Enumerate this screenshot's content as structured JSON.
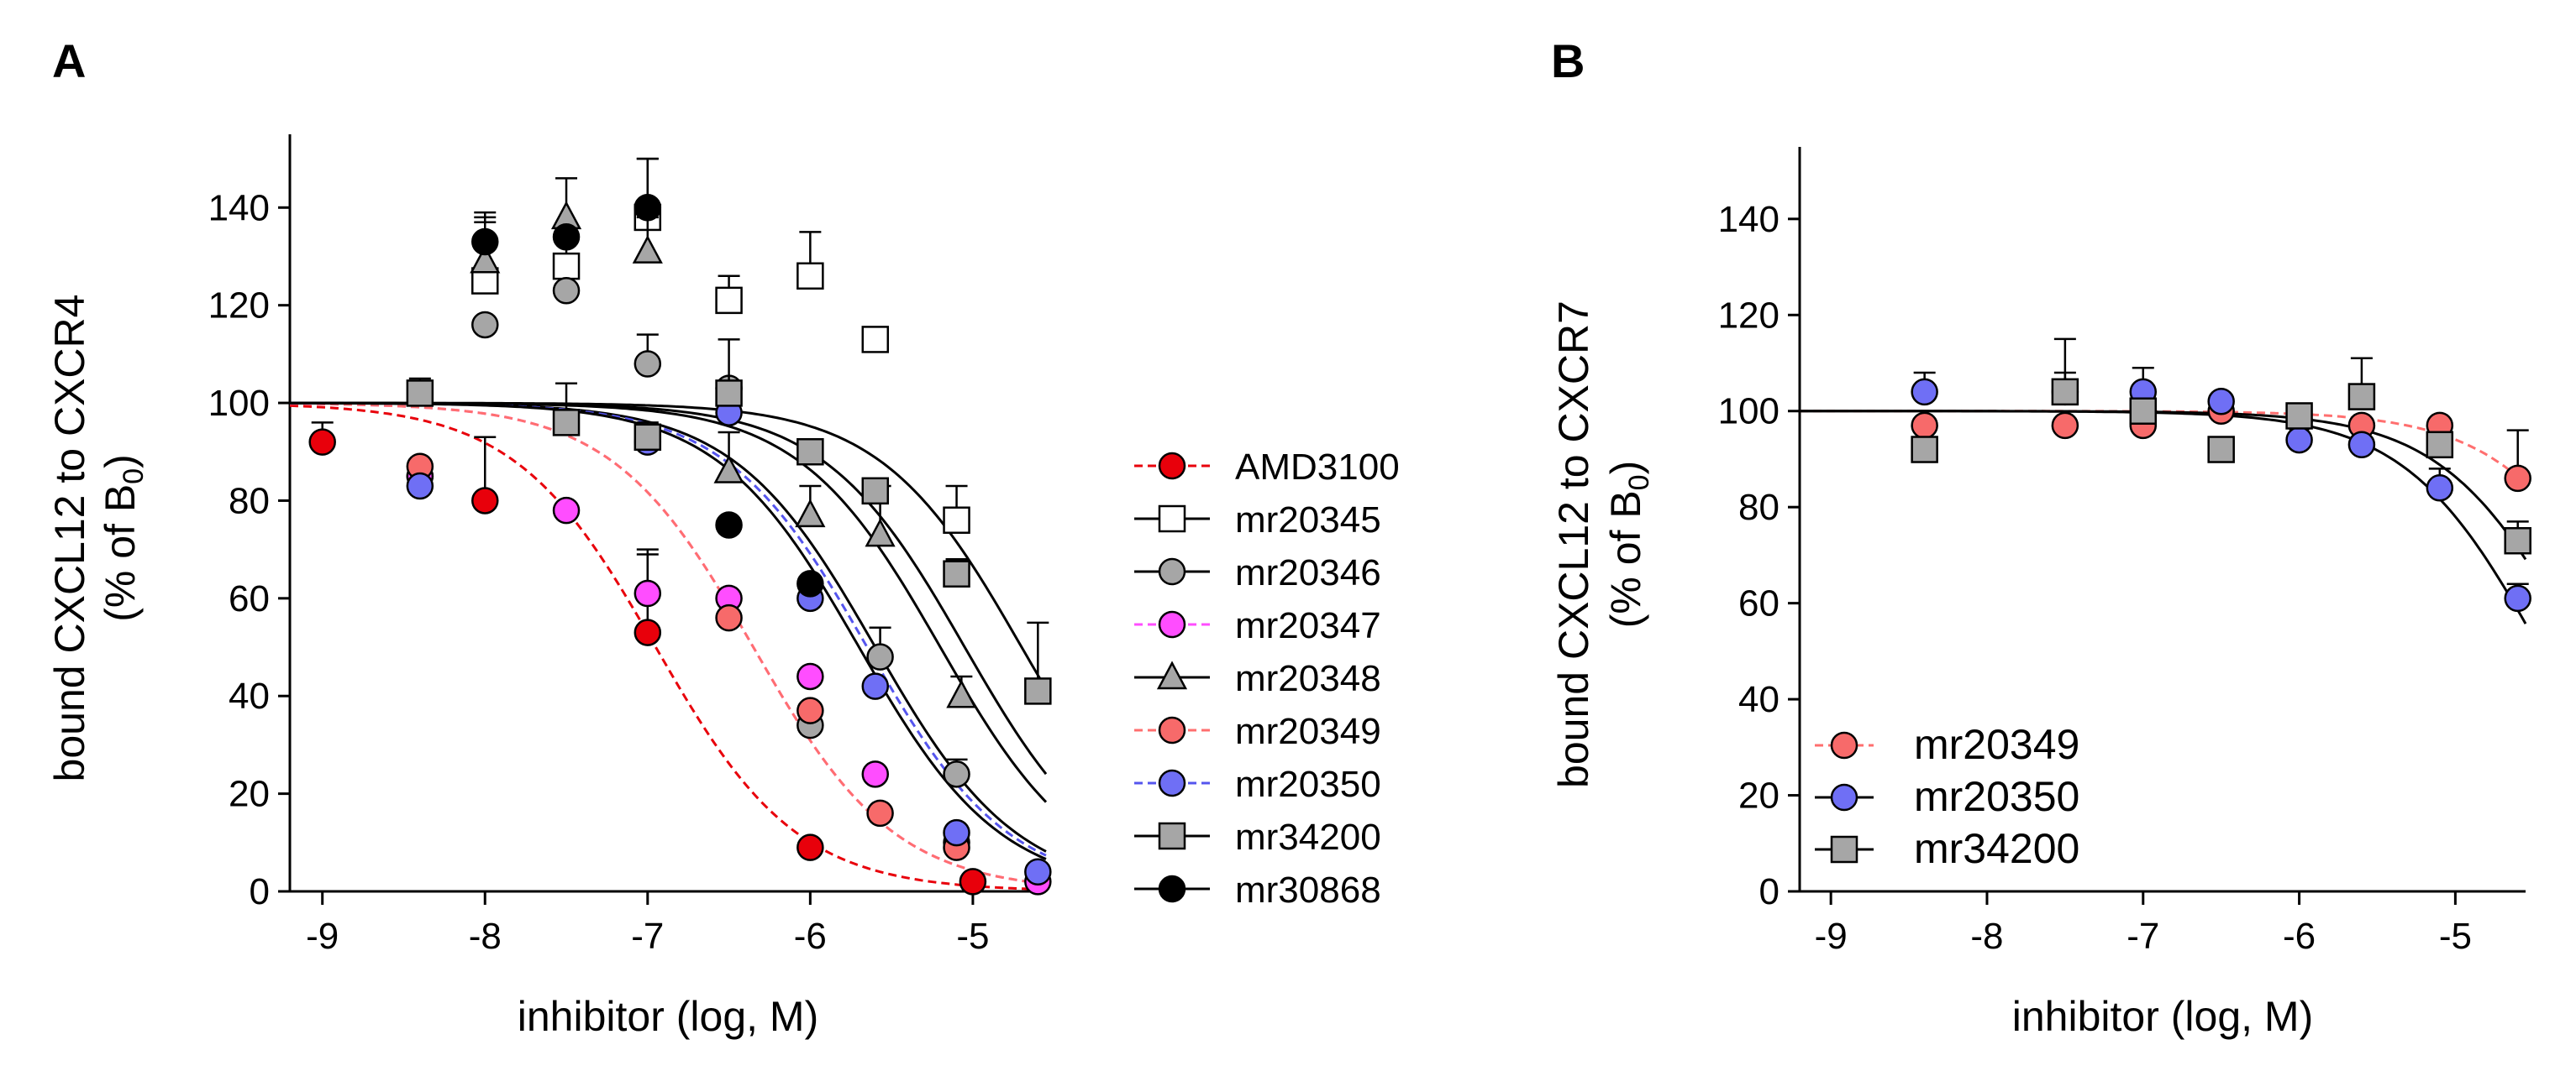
{
  "chart_data": [
    {
      "panel": "A",
      "type": "scatter",
      "xlabel": "inhibitor (log, M)",
      "ylabel_line1": "bound CXCL12 to CXCR4",
      "ylabel_line2_prefix": "(% of B",
      "ylabel_line2_sub": "0",
      "ylabel_line2_suffix": ")",
      "xlim": [
        -9.2,
        -4.55
      ],
      "ylim": [
        0,
        155
      ],
      "xticks": [
        -9,
        -8,
        -7,
        -6,
        -5
      ],
      "xtick_labels": [
        "-9",
        "-8",
        "-7",
        "-6",
        "-5"
      ],
      "yticks": [
        0,
        20,
        40,
        60,
        80,
        100,
        120,
        140
      ],
      "ytick_labels": [
        "0",
        "20",
        "40",
        "60",
        "80",
        "100",
        "120",
        "140"
      ],
      "legend_position": "right",
      "series": [
        {
          "name": "AMD3100",
          "color": "#e8000b",
          "marker": "circle",
          "fill": "#e8000b",
          "dashed": true,
          "ic50_log": -6.95,
          "x": [
            -9,
            -8.4,
            -8,
            -7,
            -6,
            -5
          ],
          "y": [
            92,
            85,
            80,
            53,
            9,
            2
          ],
          "err": [
            4,
            2,
            13,
            17,
            0,
            0
          ]
        },
        {
          "name": "mr20345",
          "color": "#000000",
          "marker": "square",
          "fill": "#ffffff",
          "dashed": false,
          "ic50_log": -4.7,
          "x": [
            -8,
            -7.5,
            -7,
            -6.5,
            -6,
            -5.6,
            -5.1
          ],
          "y": [
            125,
            128,
            138,
            121,
            126,
            113,
            76
          ],
          "err": [
            14,
            5,
            12,
            5,
            9,
            0,
            7
          ]
        },
        {
          "name": "mr20346",
          "color": "#000000",
          "marker": "circle",
          "fill": "#a6a6a6",
          "dashed": false,
          "ic50_log": -5.6,
          "x": [
            -8,
            -7.5,
            -7,
            -6.5,
            -6,
            -5.57,
            -5.1
          ],
          "y": [
            116,
            123,
            108,
            103,
            34,
            48,
            24
          ],
          "err": [
            0,
            0,
            6,
            0,
            4,
            6,
            3
          ]
        },
        {
          "name": "mr20347",
          "color": "#ff4dff",
          "marker": "circle",
          "fill": "#ff4dff",
          "dashed": true,
          "ic50_log": -6.35,
          "x": [
            -8.4,
            -7.5,
            -7,
            -6.5,
            -6,
            -5.6,
            -5.1,
            -4.6
          ],
          "y": [
            85,
            78,
            61,
            60,
            44,
            24,
            10,
            2
          ],
          "err": [
            0,
            0,
            8,
            0,
            0,
            0,
            0,
            0
          ]
        },
        {
          "name": "mr20348",
          "color": "#000000",
          "marker": "triangle",
          "fill": "#a6a6a6",
          "dashed": false,
          "ic50_log": -5.2,
          "x": [
            -8,
            -7.5,
            -7,
            -6.5,
            -6,
            -5.57,
            -5.07
          ],
          "y": [
            129,
            138,
            131,
            86,
            77,
            73,
            40
          ],
          "err": [
            8,
            8,
            7,
            8,
            6,
            10,
            4
          ]
        },
        {
          "name": "mr20349",
          "color": "#ff6f6f",
          "marker": "circle",
          "fill": "#f76a6a",
          "dashed": true,
          "ic50_log": -6.35,
          "x": [
            -8.4,
            -6.5,
            -6,
            -5.57,
            -5.1
          ],
          "y": [
            87,
            56,
            37,
            16,
            9
          ],
          "err": [
            0,
            0,
            0,
            0,
            0
          ]
        },
        {
          "name": "mr20350",
          "color": "#5555ee",
          "marker": "circle",
          "fill": "#6f6ff5",
          "dashed": true,
          "ic50_log": -5.65,
          "x": [
            -8.4,
            -7,
            -6.5,
            -6,
            -5.6,
            -5.1,
            -4.6
          ],
          "y": [
            83,
            92,
            98,
            60,
            42,
            12,
            4
          ],
          "err": [
            0,
            0,
            0,
            0,
            0,
            0,
            0
          ]
        },
        {
          "name": "mr34200",
          "color": "#000000",
          "marker": "square",
          "fill": "#a6a6a6",
          "dashed": false,
          "ic50_log": -5.05,
          "x": [
            -8.4,
            -7.5,
            -7,
            -6.5,
            -6,
            -5.6,
            -5.1,
            -4.6
          ],
          "y": [
            102,
            96,
            93,
            102,
            90,
            82,
            65,
            41
          ],
          "err": [
            3,
            8,
            3,
            11,
            2,
            0,
            3,
            14
          ]
        },
        {
          "name": "mr30868",
          "color": "#000000",
          "marker": "circle",
          "fill": "#000000",
          "dashed": false,
          "ic50_log": -5.7,
          "x": [
            -8,
            -7.5,
            -7,
            -6.5,
            -6
          ],
          "y": [
            133,
            134,
            140,
            75,
            63
          ],
          "err": [
            5,
            0,
            10,
            0,
            0
          ]
        }
      ]
    },
    {
      "panel": "B",
      "type": "scatter",
      "xlabel": "inhibitor (log, M)",
      "ylabel_line1": "bound CXCL12 to CXCR7",
      "ylabel_line2_prefix": "(% of B",
      "ylabel_line2_sub": "0",
      "ylabel_line2_suffix": ")",
      "xlim": [
        -9.2,
        -4.55
      ],
      "ylim": [
        0,
        155
      ],
      "xticks": [
        -9,
        -8,
        -7,
        -6,
        -5
      ],
      "xtick_labels": [
        "-9",
        "-8",
        "-7",
        "-6",
        "-5"
      ],
      "yticks": [
        0,
        20,
        40,
        60,
        80,
        100,
        120,
        140
      ],
      "ytick_labels": [
        "0",
        "20",
        "40",
        "60",
        "80",
        "100",
        "120",
        "140"
      ],
      "legend_position": "bottom-left",
      "series": [
        {
          "name": "mr20349",
          "color": "#ff6f6f",
          "marker": "circle",
          "fill": "#f76a6a",
          "dashed": true,
          "ic50_log": -3.8,
          "x": [
            -8.4,
            -7.5,
            -7,
            -6.5,
            -6,
            -5.6,
            -5.1,
            -4.6
          ],
          "y": [
            97,
            97,
            97,
            100,
            98,
            97,
            97,
            86
          ],
          "err": [
            0,
            0,
            0,
            0,
            0,
            0,
            0,
            10
          ]
        },
        {
          "name": "mr20350",
          "color": "#000000",
          "marker": "circle",
          "fill": "#6f6ff5",
          "dashed": false,
          "ic50_log": -4.45,
          "x": [
            -8.4,
            -7.5,
            -7,
            -6.5,
            -6,
            -5.6,
            -5.1,
            -4.6
          ],
          "y": [
            104,
            104,
            104,
            102,
            94,
            93,
            84,
            61
          ],
          "err": [
            4,
            11,
            5,
            0,
            0,
            0,
            4,
            3
          ]
        },
        {
          "name": "mr34200",
          "color": "#000000",
          "marker": "square",
          "fill": "#a6a6a6",
          "dashed": false,
          "ic50_log": -4.2,
          "x": [
            -8.4,
            -7.5,
            -7,
            -6.5,
            -6,
            -5.6,
            -5.1,
            -4.6
          ],
          "y": [
            92,
            104,
            100,
            92,
            99,
            103,
            93,
            73
          ],
          "err": [
            0,
            4,
            0,
            0,
            0,
            8,
            0,
            4
          ]
        }
      ]
    }
  ],
  "panels": {
    "A": {
      "label": "A"
    },
    "B": {
      "label": "B"
    }
  }
}
